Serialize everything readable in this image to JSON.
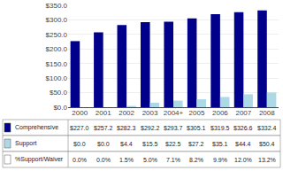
{
  "chart_data": {
    "type": "bar",
    "categories": [
      "2000",
      "2001",
      "2002",
      "2003",
      "2004+",
      "2005",
      "2006",
      "2007",
      "2008"
    ],
    "series": [
      {
        "name": "Comprehensive",
        "color": "#00008B",
        "values": [
          227.0,
          257.2,
          282.3,
          292.2,
          293.7,
          305.1,
          319.5,
          326.6,
          332.4
        ],
        "value_labels": [
          "$227.0",
          "$257.2",
          "$282.3",
          "$292.2",
          "$293.7",
          "$305.1",
          "$319.5",
          "$326.6",
          "$332.4"
        ]
      },
      {
        "name": "Support",
        "color": "#ADD8E6",
        "values": [
          0.0,
          0.0,
          4.4,
          15.5,
          22.5,
          27.2,
          35.1,
          44.4,
          50.4
        ],
        "value_labels": [
          "$0.0",
          "$0.0",
          "$4.4",
          "$15.5",
          "$22.5",
          "$27.2",
          "$35.1",
          "$44.4",
          "$50.4"
        ]
      },
      {
        "name": "%Support/Waiver",
        "type": "table",
        "values": [
          0.0,
          0.0,
          1.5,
          5.0,
          7.1,
          8.2,
          9.9,
          12.0,
          13.2
        ],
        "value_labels": [
          "0.0%",
          "0.0%",
          "1.5%",
          "5.0%",
          "7.1%",
          "8.2%",
          "9.9%",
          "12.0%",
          "13.2%"
        ]
      }
    ],
    "ylim": [
      0,
      350
    ],
    "yticks": [
      {
        "value": 0,
        "label": "$0.0"
      },
      {
        "value": 50,
        "label": "$50.0"
      },
      {
        "value": 100,
        "label": "$100.0"
      },
      {
        "value": 150,
        "label": "$150.0"
      },
      {
        "value": 200,
        "label": "$200.0"
      },
      {
        "value": 250,
        "label": "$250.0"
      },
      {
        "value": 300,
        "label": "$300.0"
      },
      {
        "value": 350,
        "label": "$350.0"
      }
    ],
    "grid": true
  }
}
